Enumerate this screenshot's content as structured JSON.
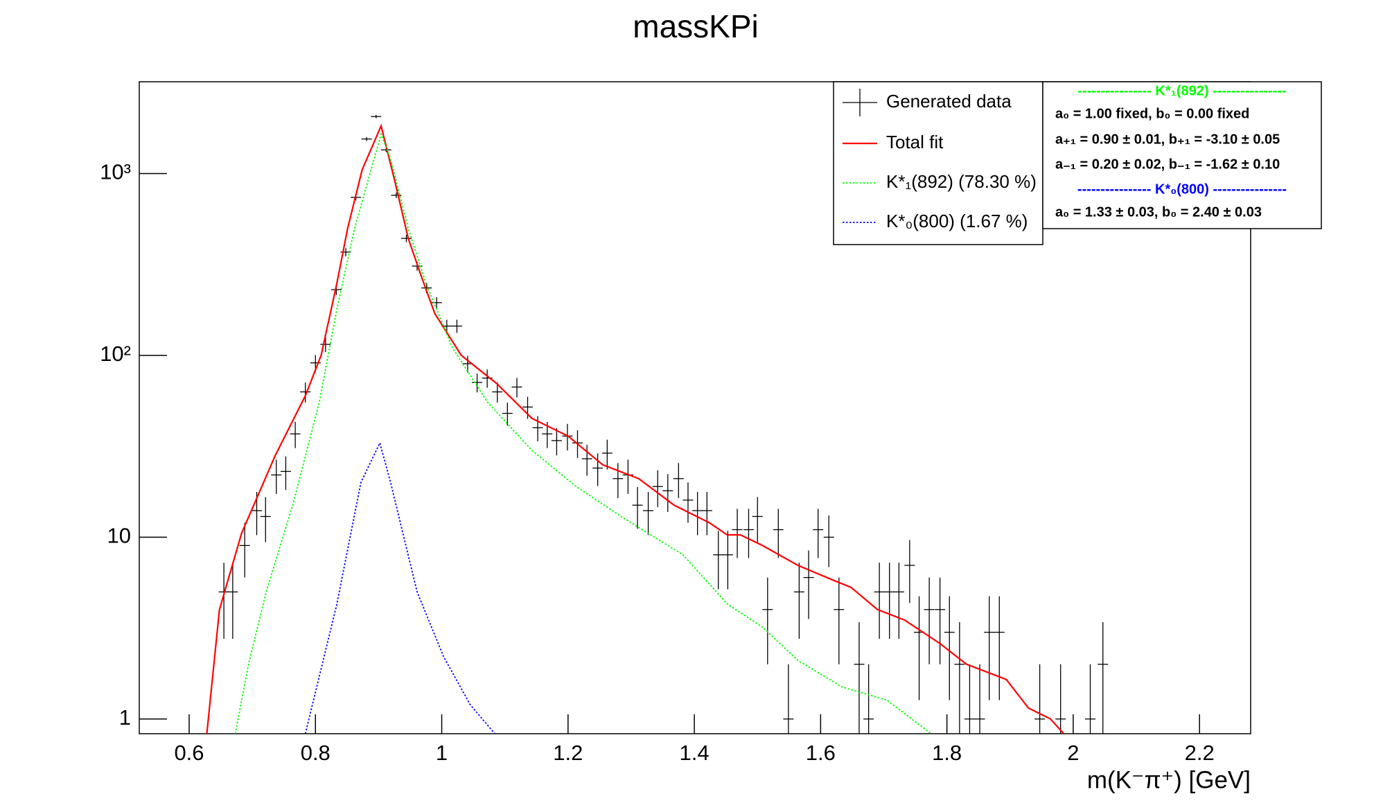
{
  "chart_data": {
    "type": "line",
    "title": "massKPi",
    "x_label": "m(K⁻π⁺) [GeV]",
    "xlim": [
      0.521,
      2.281
    ],
    "xticks": [
      0.6,
      0.8,
      1,
      1.2,
      1.4,
      1.6,
      1.8,
      2,
      2.2
    ],
    "ylim": [
      0.83,
      3200
    ],
    "log_y": true,
    "yticks": [
      1,
      10,
      {
        "value": 100,
        "label": "10²"
      },
      {
        "value": 1000,
        "label": "10³"
      }
    ],
    "legend": "top-right",
    "series": [
      {
        "name": "Generated data",
        "style": "errorbar",
        "color": "#000000",
        "x": [
          0.655,
          0.669,
          0.688,
          0.707,
          0.721,
          0.738,
          0.753,
          0.768,
          0.784,
          0.8,
          0.816,
          0.833,
          0.848,
          0.864,
          0.881,
          0.896,
          0.912,
          0.928,
          0.944,
          0.961,
          0.976,
          0.992,
          1.008,
          1.024,
          1.041,
          1.056,
          1.072,
          1.088,
          1.104,
          1.119,
          1.136,
          1.152,
          1.167,
          1.182,
          1.199,
          1.215,
          1.23,
          1.247,
          1.262,
          1.279,
          1.295,
          1.31,
          1.327,
          1.342,
          1.358,
          1.375,
          1.39,
          1.405,
          1.42,
          1.438,
          1.453,
          1.468,
          1.486,
          1.5,
          1.516,
          1.533,
          1.549,
          1.566,
          1.581,
          1.596,
          1.613,
          1.629,
          1.661,
          1.676,
          1.693,
          1.709,
          1.724,
          1.741,
          1.756,
          1.772,
          1.789,
          1.804,
          1.82,
          1.836,
          1.852,
          1.867,
          1.883,
          1.947,
          1.98,
          2.027,
          2.047
        ],
        "values": [
          5,
          5,
          9,
          14,
          13,
          22,
          23,
          37,
          63,
          91,
          115,
          230,
          370,
          740,
          1550,
          2060,
          1350,
          760,
          440,
          310,
          235,
          195,
          145,
          145,
          90,
          71,
          75,
          63,
          48,
          67,
          52,
          40,
          37,
          34,
          36,
          33,
          27,
          24,
          29,
          21,
          22,
          15,
          14,
          19,
          18,
          21,
          16,
          14,
          14,
          8,
          8,
          11,
          11,
          13,
          4,
          11,
          1,
          5,
          6,
          11,
          10,
          4,
          2,
          1,
          5,
          5,
          5,
          7,
          3,
          4,
          4,
          3,
          2,
          1,
          1,
          3,
          3,
          1,
          1,
          1,
          2
        ],
        "errors": [
          2.24,
          2.24,
          3,
          3.74,
          3.61,
          4.69,
          4.8,
          6.08,
          7.94,
          9.54,
          10.72,
          15.17,
          19.24,
          27.2,
          39.37,
          45.39,
          36.74,
          27.57,
          20.98,
          17.61,
          15.33,
          13.96,
          12.04,
          12.04,
          9.49,
          8.43,
          8.66,
          7.94,
          6.93,
          8.19,
          7.21,
          6.32,
          6.08,
          5.83,
          6,
          5.74,
          5.2,
          4.9,
          5.39,
          4.58,
          4.69,
          3.87,
          3.74,
          4.36,
          4.24,
          4.58,
          4,
          3.74,
          3.74,
          2.83,
          2.83,
          3.32,
          3.32,
          3.61,
          2,
          3.32,
          1,
          2.24,
          2.45,
          3.32,
          3.16,
          2,
          1.41,
          1,
          2.24,
          2.24,
          2.24,
          2.65,
          1.73,
          2,
          2,
          1.73,
          1.41,
          1,
          1,
          1.73,
          1.73,
          1,
          1,
          1,
          1.41
        ]
      },
      {
        "name": "Total fit",
        "style": "solid",
        "color": "#ff0000",
        "x": [
          0.628,
          0.648,
          0.683,
          0.736,
          0.784,
          0.809,
          0.834,
          0.851,
          0.874,
          0.904,
          0.926,
          0.947,
          0.968,
          0.989,
          1.031,
          1.087,
          1.143,
          1.2,
          1.255,
          1.312,
          1.368,
          1.424,
          1.452,
          1.473,
          1.508,
          1.564,
          1.62,
          1.648,
          1.69,
          1.733,
          1.789,
          1.831,
          1.894,
          1.929,
          1.964,
          1.985
        ],
        "values": [
          0.83,
          4,
          10.5,
          28,
          60,
          100,
          250,
          500,
          1050,
          1830,
          900,
          440,
          270,
          170,
          100,
          70,
          45,
          36,
          25,
          21,
          15,
          12,
          10.3,
          10.3,
          9,
          7,
          5.8,
          5.3,
          4,
          3.5,
          2.6,
          2,
          1.65,
          1.15,
          1,
          0.83
        ]
      },
      {
        "name": "K*₁(892) (78.30 %)",
        "style": "dotted",
        "color": "#00ff00",
        "x": [
          0.673,
          0.694,
          0.722,
          0.764,
          0.806,
          0.834,
          0.862,
          0.904,
          0.919,
          0.947,
          0.975,
          1.017,
          1.073,
          1.143,
          1.213,
          1.284,
          1.382,
          1.452,
          1.508,
          1.564,
          1.634,
          1.705,
          1.775
        ],
        "values": [
          0.83,
          2,
          5,
          15,
          55,
          180,
          500,
          1650,
          1200,
          500,
          250,
          110,
          55,
          30,
          19,
          13,
          8,
          4.3,
          3.2,
          2.1,
          1.5,
          1.27,
          0.83
        ]
      },
      {
        "name": "K*₀(800) (1.67 %)",
        "style": "dotted",
        "color": "#0000ff",
        "x": [
          0.784,
          0.834,
          0.872,
          0.902,
          0.919,
          0.961,
          1.003,
          1.045,
          1.084
        ],
        "values": [
          0.83,
          4.3,
          20,
          33,
          20,
          5,
          2.2,
          1.2,
          0.83
        ]
      }
    ],
    "fit_parameters": [
      {
        "text": "----------------  K*₁(892)  ----------------",
        "color": "#00ff00"
      },
      {
        "text": "a₀ = 1.00 fixed, b₀ = 0.00 fixed",
        "color": "#000000"
      },
      {
        "text": "a₊₁ = 0.90 ± 0.01, b₊₁ = -3.10 ± 0.05",
        "color": "#000000"
      },
      {
        "text": "a₋₁ = 0.20 ± 0.02, b₋₁ = -1.62 ± 0.10",
        "color": "#000000"
      },
      {
        "text": "----------------  K*₀(800)  ----------------",
        "color": "#0000ff"
      },
      {
        "text": "a₀ = 1.33 ± 0.03, b₀ = 2.40 ± 0.03",
        "color": "#000000"
      }
    ]
  }
}
